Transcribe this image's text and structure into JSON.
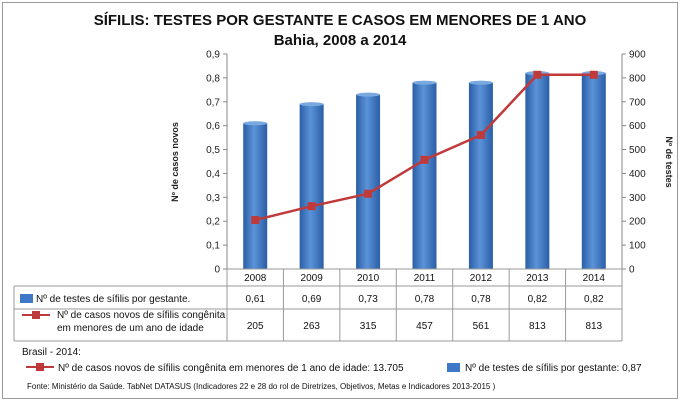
{
  "chart_data": {
    "type": "bar",
    "title": "SÍFILIS: TESTES POR GESTANTE E CASOS EM MENORES DE 1 ANO",
    "subtitle": "Bahia, 2008 a 2014",
    "categories": [
      "2008",
      "2009",
      "2010",
      "2011",
      "2012",
      "2013",
      "2014"
    ],
    "series": [
      {
        "name": "Nº de testes de sífilis por gestante.",
        "type": "bar",
        "axis": "left",
        "color": "#3E78C6",
        "values": [
          0.61,
          0.69,
          0.73,
          0.78,
          0.78,
          0.82,
          0.82
        ],
        "labels": [
          "0,61",
          "0,69",
          "0,73",
          "0,78",
          "0,78",
          "0,82",
          "0,82"
        ]
      },
      {
        "name_line1": "Nº de casos novos de sífilis congênita",
        "name_line2": "em menores de um ano de idade",
        "type": "line",
        "axis": "right",
        "color": "#C0393B",
        "values": [
          205,
          263,
          315,
          457,
          561,
          813,
          813
        ],
        "labels": [
          "205",
          "263",
          "315",
          "457",
          "561",
          "813",
          "813"
        ]
      }
    ],
    "ylabel_left": "Nº de casos novos",
    "ylabel_right": "Nº de testes",
    "ylim_left": [
      0,
      0.9
    ],
    "yticks_left": [
      "0",
      "0,1",
      "0,2",
      "0,3",
      "0,4",
      "0,5",
      "0,6",
      "0,7",
      "0,8",
      "0,9"
    ],
    "ylim_right": [
      0,
      900
    ],
    "yticks_right": [
      "0",
      "100",
      "200",
      "300",
      "400",
      "500",
      "600",
      "700",
      "800",
      "900"
    ],
    "grid": false,
    "legend": "data-table"
  },
  "notes": {
    "heading": "Brasil - 2014:",
    "line_item": "Nº de casos novos de sífilis congênita em menores de 1 ano de idade: 13.705",
    "bar_item": "Nº de testes de sífilis por gestante: 0,87"
  },
  "source": "Fonte: Ministério da Saúde. TabNet DATASUS (Indicadores 22 e 28 do rol de Diretrizes, Objetivos, Metas e Indicadores 2013-2015 )"
}
